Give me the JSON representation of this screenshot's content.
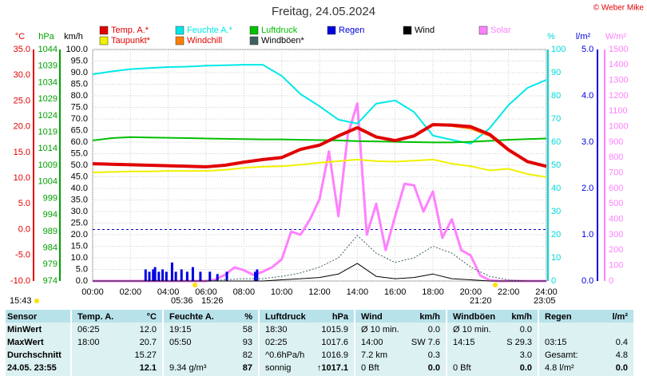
{
  "chart_data": {
    "type": "line",
    "title": "Freitag, 24.05.2024",
    "copyright": "© Weber Mike",
    "xlim": [
      0,
      24
    ],
    "xticks": [
      {
        "value": 0,
        "label": "00:00"
      },
      {
        "value": 2,
        "label": "02:00"
      },
      {
        "value": 4,
        "label": "04:00"
      },
      {
        "value": 6,
        "label": "06:00"
      },
      {
        "value": 8,
        "label": "08:00"
      },
      {
        "value": 10,
        "label": "10:00"
      },
      {
        "value": 12,
        "label": "12:00"
      },
      {
        "value": 14,
        "label": "14:00"
      },
      {
        "value": 16,
        "label": "16:00"
      },
      {
        "value": 18,
        "label": "18:00"
      },
      {
        "value": 20,
        "label": "20:00"
      },
      {
        "value": 22,
        "label": "22:00"
      },
      {
        "value": 24,
        "label": "24:00"
      }
    ],
    "grid": true,
    "axes": {
      "temp": {
        "label": "°C",
        "color": "#e00000",
        "lim": [
          -10,
          35
        ],
        "ticks": [
          {
            "value": -10,
            "label": "-10.0"
          },
          {
            "value": -5,
            "label": "-5.0"
          },
          {
            "value": 0,
            "label": "0.0"
          },
          {
            "value": 5,
            "label": "5.0"
          },
          {
            "value": 10,
            "label": "10.0"
          },
          {
            "value": 15,
            "label": "15.0"
          },
          {
            "value": 20,
            "label": "20.0"
          },
          {
            "value": 25,
            "label": "25.0"
          },
          {
            "value": 30,
            "label": "30.0"
          },
          {
            "value": 35,
            "label": "35.0"
          }
        ]
      },
      "pressure": {
        "label": "hPa",
        "color": "#00a000",
        "lim": [
          974,
          1044
        ],
        "ticks": [
          974,
          979,
          984,
          989,
          994,
          999,
          1004,
          1009,
          1014,
          1019,
          1024,
          1029,
          1034,
          1039,
          1044
        ]
      },
      "speed": {
        "label": "km/h",
        "color": "#000000",
        "lim": [
          0,
          100
        ],
        "ticks": [
          {
            "value": 0,
            "label": "0.0"
          },
          {
            "value": 5,
            "label": "5.0"
          },
          {
            "value": 10,
            "label": "10.0"
          },
          {
            "value": 15,
            "label": "15.0"
          },
          {
            "value": 20,
            "label": "20.0"
          },
          {
            "value": 25,
            "label": "25.0"
          },
          {
            "value": 30,
            "label": "30.0"
          },
          {
            "value": 35,
            "label": "35.0"
          },
          {
            "value": 40,
            "label": "40.0"
          },
          {
            "value": 45,
            "label": "45.0"
          },
          {
            "value": 50,
            "label": "50.0"
          },
          {
            "value": 55,
            "label": "55.0"
          },
          {
            "value": 60,
            "label": "60.0"
          },
          {
            "value": 65,
            "label": "65.0"
          },
          {
            "value": 70,
            "label": "70.0"
          },
          {
            "value": 75,
            "label": "75.0"
          },
          {
            "value": 80,
            "label": "80.0"
          },
          {
            "value": 85,
            "label": "85.0"
          },
          {
            "value": 90,
            "label": "90.0"
          },
          {
            "value": 95,
            "label": "95.0"
          },
          {
            "value": 100,
            "label": "100.0"
          }
        ]
      },
      "humidity": {
        "label": "%",
        "color": "#00d8d8",
        "lim": [
          0,
          100
        ],
        "ticks": [
          0,
          10,
          20,
          30,
          40,
          50,
          60,
          70,
          80,
          90,
          100
        ]
      },
      "rain": {
        "label": "l/m²",
        "color": "#0000e0",
        "lim": [
          0,
          5
        ],
        "ticks": [
          {
            "value": 0,
            "label": "0.0"
          },
          {
            "value": 1,
            "label": "1.0"
          },
          {
            "value": 2,
            "label": "2.0"
          },
          {
            "value": 3,
            "label": "3.0"
          },
          {
            "value": 4,
            "label": "4.0"
          },
          {
            "value": 5,
            "label": "5.0"
          }
        ]
      },
      "solar": {
        "label": "W/m²",
        "color": "#ff80ff",
        "lim": [
          0,
          1500
        ],
        "ticks": [
          0,
          100,
          200,
          300,
          400,
          500,
          600,
          700,
          800,
          900,
          1000,
          1100,
          1200,
          1300,
          1400,
          1500
        ]
      }
    },
    "series": [
      {
        "name": "Temp. A.*",
        "color": "#e00000",
        "axis": "temp",
        "x": [
          0,
          1,
          2,
          3,
          4,
          5,
          6,
          7,
          8,
          9,
          10,
          11,
          12,
          13,
          14,
          15,
          16,
          17,
          18,
          19,
          20,
          21,
          22,
          23,
          24
        ],
        "values": [
          12.8,
          12.7,
          12.6,
          12.5,
          12.4,
          12.3,
          12.2,
          12.5,
          13.1,
          13.6,
          14.0,
          15.6,
          16.4,
          18.2,
          19.8,
          18.0,
          17.3,
          18.2,
          20.4,
          20.3,
          20.0,
          18.5,
          15.5,
          13.2,
          12.3
        ]
      },
      {
        "name": "Feuchte A.*",
        "color": "#00e8e8",
        "axis": "humidity",
        "x": [
          0,
          1,
          2,
          3,
          4,
          5,
          6,
          7,
          8,
          9,
          10,
          11,
          12,
          13,
          14,
          15,
          16,
          17,
          18,
          19,
          20,
          21,
          22,
          23,
          24
        ],
        "values": [
          89.3,
          90.5,
          91.5,
          92,
          92.4,
          92.6,
          93,
          93.2,
          93.4,
          93.4,
          88.6,
          80.7,
          75.5,
          69.7,
          68,
          76.6,
          78,
          73,
          62.8,
          61,
          59.3,
          66,
          76,
          83.4,
          86.9
        ]
      },
      {
        "name": "Luftdruck",
        "color": "#00c000",
        "axis": "pressure",
        "x": [
          0,
          1,
          2,
          3,
          4,
          5,
          6,
          7,
          8,
          9,
          10,
          11,
          12,
          13,
          14,
          15,
          16,
          17,
          18,
          19,
          20,
          21,
          22,
          23,
          24
        ],
        "values": [
          1016.5,
          1017.2,
          1017.5,
          1017.4,
          1017.3,
          1017.2,
          1017.1,
          1017.0,
          1016.9,
          1016.8,
          1016.8,
          1016.7,
          1016.6,
          1016.5,
          1016.3,
          1016.2,
          1016.1,
          1016.0,
          1015.9,
          1015.9,
          1016.1,
          1016.4,
          1016.7,
          1016.9,
          1017.1
        ]
      },
      {
        "name": "Regen",
        "color": "#0000e0",
        "axis": "rain",
        "type": "bar",
        "x": [
          2.8,
          3.0,
          3.2,
          3.3,
          3.5,
          3.7,
          3.9,
          4.2,
          4.4,
          4.7,
          5.0,
          5.3,
          5.7,
          6.2,
          6.6,
          7.1,
          8.6,
          8.7
        ],
        "values": [
          0.25,
          0.2,
          0.25,
          0.3,
          0.2,
          0.25,
          0.2,
          0.4,
          0.2,
          0.25,
          0.2,
          0.3,
          0.2,
          0.2,
          0.15,
          0.2,
          0.2,
          0.25
        ]
      },
      {
        "name": "Wind",
        "color": "#000000",
        "axis": "speed",
        "x": [
          0,
          1,
          2,
          3,
          4,
          5,
          6,
          7,
          8,
          9,
          10,
          11,
          12,
          13,
          14,
          15,
          16,
          17,
          18,
          19,
          20,
          21,
          22,
          23,
          24
        ],
        "values": [
          0,
          0,
          0,
          0,
          0,
          0,
          0,
          0,
          0,
          0,
          0.5,
          1,
          1.5,
          3,
          7.6,
          2,
          1,
          1.5,
          3,
          1,
          0.5,
          0,
          0,
          0,
          0
        ]
      },
      {
        "name": "Solar",
        "color": "#ff80ff",
        "axis": "solar",
        "x": [
          0,
          0.5,
          1,
          1.5,
          2,
          2.5,
          3,
          3.5,
          4,
          4.5,
          5,
          5.5,
          6,
          6.5,
          7,
          7.5,
          8,
          8.5,
          9,
          9.5,
          10,
          10.5,
          11,
          11.5,
          12,
          12.5,
          13,
          13.5,
          14,
          14.5,
          15,
          15.5,
          16,
          16.5,
          17,
          17.5,
          18,
          18.5,
          19,
          19.5,
          20,
          20.5,
          21,
          21.5,
          22,
          22.5,
          23,
          23.5,
          24
        ],
        "values": [
          0,
          0,
          0,
          0,
          0,
          0,
          0,
          0,
          0,
          0,
          0,
          0,
          0,
          10,
          40,
          88,
          70,
          40,
          60,
          90,
          140,
          320,
          300,
          400,
          530,
          840,
          420,
          950,
          1150,
          300,
          500,
          200,
          420,
          630,
          620,
          450,
          580,
          280,
          400,
          200,
          165,
          36,
          5,
          0,
          0,
          0,
          0,
          0,
          0
        ]
      },
      {
        "name": "Taupunkt*",
        "color": "#f0f000",
        "axis": "temp",
        "x": [
          0,
          1,
          2,
          3,
          4,
          5,
          6,
          7,
          8,
          9,
          10,
          11,
          12,
          13,
          14,
          15,
          16,
          17,
          18,
          19,
          20,
          21,
          22,
          23,
          24
        ],
        "values": [
          11.1,
          11.2,
          11.3,
          11.3,
          11.4,
          11.4,
          11.4,
          11.6,
          12.0,
          12.2,
          12.3,
          12.6,
          13.0,
          13.3,
          13.6,
          13.3,
          13.2,
          13.4,
          13.6,
          12.8,
          12.3,
          11.5,
          11.8,
          10.8,
          10.2
        ]
      },
      {
        "name": "Windchill",
        "color": "#ff8000",
        "axis": "temp",
        "x": [
          0,
          1,
          2,
          3,
          4,
          5,
          6,
          7,
          8,
          9,
          10,
          11,
          12,
          13,
          14,
          15,
          16,
          17,
          18,
          19,
          20,
          21,
          22,
          23,
          24
        ],
        "values": [
          12.8,
          12.7,
          12.6,
          12.5,
          12.4,
          12.3,
          12.2,
          12.5,
          13.1,
          13.6,
          14.0,
          15.6,
          16.4,
          18.2,
          19.8,
          18.0,
          17.3,
          18.2,
          20.4,
          20.1,
          19.6,
          18.2,
          15.3,
          13.1,
          12.2
        ]
      },
      {
        "name": "Windböen*",
        "color": "#406060",
        "axis": "speed",
        "dashed": true,
        "x": [
          0,
          1,
          2,
          3,
          4,
          5,
          6,
          7,
          8,
          9,
          10,
          11,
          12,
          13,
          14,
          15,
          16,
          17,
          18,
          19,
          20,
          21,
          22,
          23,
          24
        ],
        "values": [
          0,
          0,
          0,
          0,
          0,
          0,
          0,
          0.5,
          1,
          1,
          2,
          3.5,
          6,
          10,
          19.7,
          12,
          8,
          10,
          15,
          12,
          6,
          2,
          0.5,
          0,
          0
        ]
      }
    ],
    "markers": [
      "15:43",
      "05:36",
      "15:26",
      "21:20",
      "23:05"
    ]
  },
  "table": {
    "header": [
      "Sensor",
      "Temp. A.",
      "°C",
      "Feuchte A.",
      "%",
      "Luftdruck",
      "hPa",
      "Wind",
      "km/h",
      "Windböen",
      "km/h",
      "Regen",
      "l/m²"
    ],
    "rows": [
      [
        "MinWert",
        "06:25",
        "12.0",
        "19:15",
        "58",
        "18:30",
        "1015.9",
        "Ø 10 min.",
        "0.0",
        "Ø 10 min.",
        "0.0",
        null,
        null
      ],
      [
        "MaxWert",
        "18:00",
        "20.7",
        "05:50",
        "93",
        "02:25",
        "1017.6",
        "14:00",
        "SW 7.6",
        "14:15",
        "S 29.3",
        "03:15",
        "0.4"
      ],
      [
        "Durchschnitt",
        null,
        "15.27",
        null,
        "82",
        "^0.6hPa/h",
        "1016.9",
        "7.2 km",
        "0.3",
        null,
        "3.0",
        "Gesamt:",
        "4.8"
      ],
      [
        "24.05. 23:55",
        null,
        "12.1",
        "9.34 g/m³",
        "87",
        "sonnig",
        "↑1017.1",
        "0 Bft",
        "0.0",
        "0 Bft",
        "0.0",
        "4.8 l/m²",
        "0.0"
      ]
    ]
  }
}
